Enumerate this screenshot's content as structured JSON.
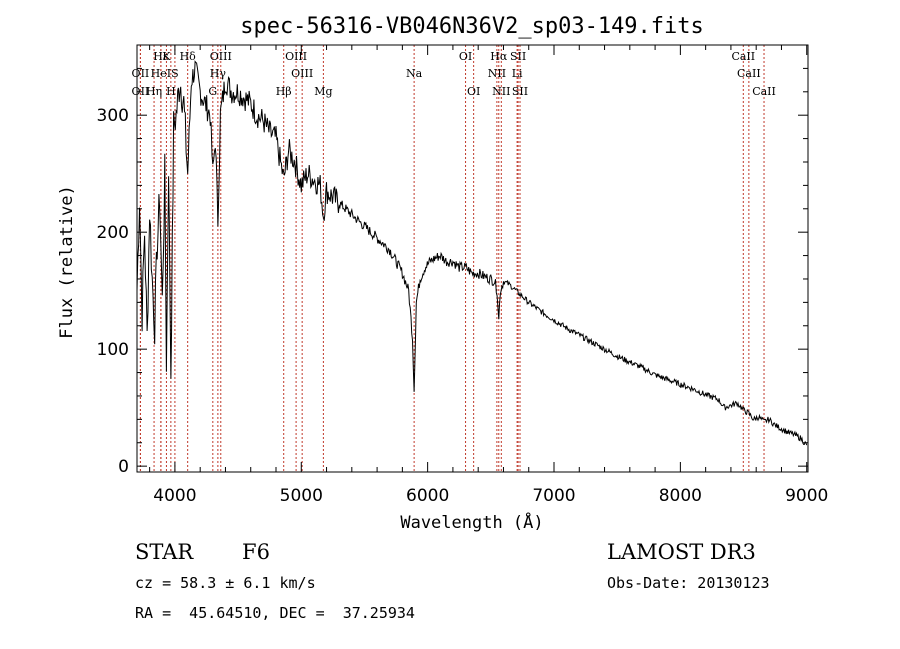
{
  "chart_data": {
    "type": "line",
    "title": "spec-56316-VB046N36V2_sp03-149.fits",
    "xlabel": "Wavelength (Å)",
    "ylabel": "Flux (relative)",
    "xlim": [
      3700,
      9010
    ],
    "ylim": [
      -5,
      360
    ],
    "x_ticks": [
      4000,
      5000,
      6000,
      7000,
      8000,
      9000
    ],
    "x_tick_labels": [
      "4000",
      "5000",
      "6000",
      "7000",
      "8000",
      "9000"
    ],
    "y_ticks": [
      0,
      100,
      200,
      300
    ],
    "y_tick_labels": [
      "0",
      "100",
      "200",
      "300"
    ],
    "series": [
      {
        "name": "spectrum",
        "color": "#000000",
        "x": [
          3700,
          3720,
          3740,
          3760,
          3780,
          3800,
          3820,
          3840,
          3860,
          3880,
          3900,
          3920,
          3933,
          3950,
          3968,
          3990,
          4010,
          4040,
          4070,
          4101,
          4130,
          4160,
          4200,
          4240,
          4280,
          4300,
          4320,
          4340,
          4360,
          4400,
          4450,
          4500,
          4550,
          4600,
          4650,
          4700,
          4750,
          4800,
          4861,
          4900,
          4950,
          5000,
          5050,
          5100,
          5150,
          5175,
          5200,
          5300,
          5400,
          5500,
          5600,
          5700,
          5800,
          5850,
          5880,
          5893,
          5910,
          5940,
          5980,
          6020,
          6060,
          6100,
          6150,
          6200,
          6250,
          6300,
          6350,
          6400,
          6450,
          6500,
          6530,
          6550,
          6563,
          6575,
          6600,
          6650,
          6700,
          6750,
          6800,
          6900,
          7000,
          7100,
          7200,
          7300,
          7400,
          7500,
          7600,
          7700,
          7800,
          7900,
          8000,
          8100,
          8200,
          8300,
          8350,
          8400,
          8450,
          8500,
          8542,
          8580,
          8620,
          8662,
          8700,
          8750,
          8800,
          8850,
          8900,
          8950,
          9000
        ],
        "y": [
          150,
          230,
          130,
          200,
          110,
          220,
          160,
          120,
          190,
          230,
          140,
          250,
          90,
          260,
          80,
          290,
          300,
          330,
          310,
          250,
          330,
          340,
          320,
          310,
          300,
          250,
          280,
          210,
          300,
          330,
          320,
          320,
          315,
          310,
          300,
          295,
          285,
          280,
          245,
          270,
          260,
          240,
          250,
          245,
          240,
          215,
          235,
          225,
          215,
          205,
          195,
          185,
          165,
          150,
          110,
          65,
          140,
          160,
          170,
          175,
          178,
          180,
          175,
          175,
          170,
          170,
          165,
          165,
          162,
          160,
          158,
          150,
          125,
          150,
          158,
          155,
          150,
          145,
          140,
          132,
          125,
          118,
          112,
          106,
          100,
          94,
          89,
          84,
          78,
          74,
          70,
          66,
          61,
          57,
          50,
          52,
          54,
          48,
          45,
          40,
          42,
          38,
          40,
          35,
          32,
          29,
          27,
          24,
          18
        ]
      }
    ],
    "spectral_lines": [
      {
        "label": "Hε",
        "wavelength": 3889,
        "row": 1
      },
      {
        "label": "OII",
        "wavelength": 3727,
        "row": 2
      },
      {
        "label": "OII",
        "wavelength": 3727,
        "row": 3
      },
      {
        "label": "Hη",
        "wavelength": 3835,
        "row": 3
      },
      {
        "label": "K",
        "wavelength": 3933,
        "row": 1
      },
      {
        "label": "HeI",
        "wavelength": 3889,
        "row": 2
      },
      {
        "label": "H",
        "wavelength": 3968,
        "row": 3
      },
      {
        "label": "S",
        "wavelength": 4000,
        "row": 2
      },
      {
        "label": "Hδ",
        "wavelength": 4101,
        "row": 1
      },
      {
        "label": "OIII",
        "wavelength": 4363,
        "row": 1
      },
      {
        "label": "Hγ",
        "wavelength": 4340,
        "row": 2
      },
      {
        "label": "G",
        "wavelength": 4300,
        "row": 3
      },
      {
        "label": "OIII",
        "wavelength": 4959,
        "row": 1
      },
      {
        "label": "OIII",
        "wavelength": 5007,
        "row": 2
      },
      {
        "label": "Hβ",
        "wavelength": 4861,
        "row": 3
      },
      {
        "label": "Mg",
        "wavelength": 5175,
        "row": 3
      },
      {
        "label": "Na",
        "wavelength": 5893,
        "row": 2
      },
      {
        "label": "OI",
        "wavelength": 6300,
        "row": 1
      },
      {
        "label": "OI",
        "wavelength": 6364,
        "row": 3
      },
      {
        "label": "Hα",
        "wavelength": 6563,
        "row": 1
      },
      {
        "label": "SII",
        "wavelength": 6716,
        "row": 1
      },
      {
        "label": "NII",
        "wavelength": 6548,
        "row": 2
      },
      {
        "label": "Li",
        "wavelength": 6708,
        "row": 2
      },
      {
        "label": "NII",
        "wavelength": 6583,
        "row": 3
      },
      {
        "label": "SII",
        "wavelength": 6731,
        "row": 3
      },
      {
        "label": "CaII",
        "wavelength": 8498,
        "row": 1
      },
      {
        "label": "CaII",
        "wavelength": 8542,
        "row": 2
      },
      {
        "label": "CaII",
        "wavelength": 8662,
        "row": 3
      }
    ],
    "line_marker_color": "#c0392b"
  },
  "info": {
    "class_label": "STAR",
    "subclass": "F6",
    "survey": "LAMOST DR3",
    "cz": "cz = 58.3 ± 6.1 km/s",
    "obs_date": "Obs-Date: 20130123",
    "coords": "RA =  45.64510, DEC =  37.25934"
  }
}
